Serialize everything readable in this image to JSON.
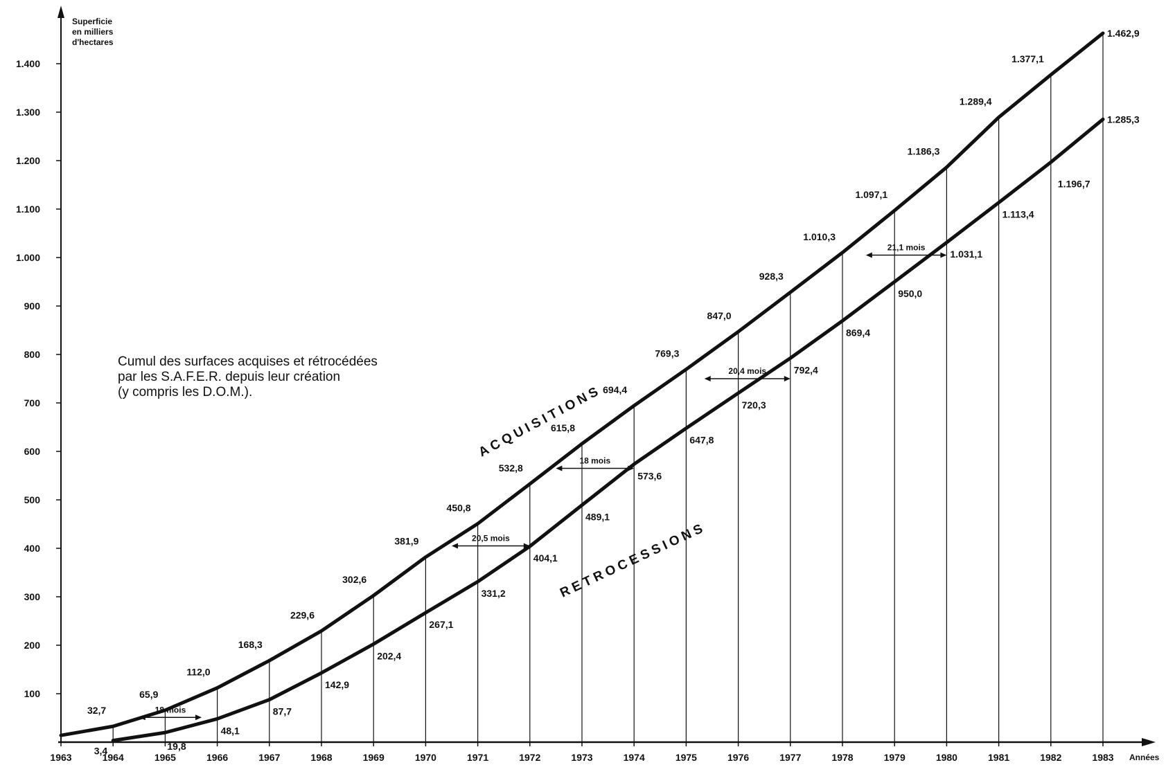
{
  "chart_data": {
    "type": "line",
    "title_lines": [
      "Cumul des surfaces acquises et rétrocédées",
      "par les S.A.F.E.R. depuis leur création",
      "(y compris les D.O.M.)."
    ],
    "ylabel_lines": [
      "Superficie",
      "en milliers",
      "d'hectares"
    ],
    "xlabel": "Années",
    "x": [
      "1963",
      "1964",
      "1965",
      "1966",
      "1967",
      "1968",
      "1969",
      "1970",
      "1971",
      "1972",
      "1973",
      "1974",
      "1975",
      "1976",
      "1977",
      "1978",
      "1979",
      "1980",
      "1981",
      "1982",
      "1983"
    ],
    "yticks": [
      "100",
      "200",
      "300",
      "400",
      "500",
      "600",
      "700",
      "800",
      "900",
      "1.000",
      "1.100",
      "1.200",
      "1.300",
      "1.400"
    ],
    "ylim": [
      0,
      1500
    ],
    "series": [
      {
        "name": "ACQUISITIONS",
        "values": [
          14,
          32.7,
          65.9,
          112.0,
          168.3,
          229.6,
          302.6,
          381.9,
          450.8,
          532.8,
          615.8,
          694.4,
          769.3,
          847.0,
          928.3,
          1010.3,
          1097.1,
          1186.3,
          1289.4,
          1377.1,
          1462.9
        ],
        "labels": [
          "",
          "32,7",
          "65,9",
          "112,0",
          "168,3",
          "229,6",
          "302,6",
          "381,9",
          "450,8",
          "532,8",
          "615,8",
          "694,4",
          "769,3",
          "847,0",
          "928,3",
          "1.010,3",
          "1.097,1",
          "1.186,3",
          "1.289,4",
          "1.377,1",
          "1.462,9"
        ]
      },
      {
        "name": "RETROCESSIONS",
        "values": [
          null,
          3.4,
          19.8,
          48.1,
          87.7,
          142.9,
          202.4,
          267.1,
          331.2,
          404.1,
          489.1,
          573.6,
          647.8,
          720.3,
          792.4,
          869.4,
          950.0,
          1031.1,
          1113.4,
          1196.7,
          1285.3
        ],
        "labels": [
          "",
          "3,4",
          "19,8",
          "48,1",
          "87,7",
          "142,9",
          "202,4",
          "267,1",
          "331,2",
          "404,1",
          "489,1",
          "573,6",
          "647,8",
          "720,3",
          "792,4",
          "869,4",
          "950,0",
          "1.031,1",
          "1.113,4",
          "1.196,7",
          "1.285,3"
        ]
      }
    ],
    "annotations": [
      {
        "label": "18 mois",
        "from": 1964.5,
        "to": 1965.7,
        "y": 51
      },
      {
        "label": "20,5 mois",
        "from": 1970.5,
        "to": 1972.0,
        "y": 405
      },
      {
        "label": "18 mois",
        "from": 1972.5,
        "to": 1974.0,
        "y": 565
      },
      {
        "label": "20,4 mois",
        "from": 1975.35,
        "to": 1977.0,
        "y": 750
      },
      {
        "label": "21,1 mois",
        "from": 1978.45,
        "to": 1980.0,
        "y": 1005
      }
    ],
    "grid": false,
    "legend": "none"
  }
}
